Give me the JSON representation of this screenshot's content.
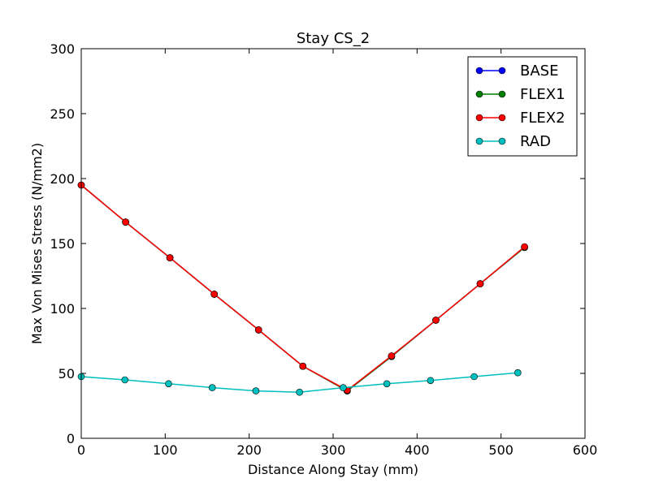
{
  "chart_data": {
    "type": "line",
    "title": "Stay CS_2",
    "xlabel": "Distance Along Stay (mm)",
    "ylabel": "Max Von Mises Stress (N/mm2)",
    "xlim": [
      0,
      600
    ],
    "ylim": [
      0,
      300
    ],
    "xticks": [
      0,
      100,
      200,
      300,
      400,
      500,
      600
    ],
    "yticks": [
      0,
      50,
      100,
      150,
      200,
      250,
      300
    ],
    "grid": false,
    "legend_position": "top-right",
    "series": [
      {
        "name": "BASE",
        "color": "#0000ff",
        "x": [
          0,
          52.8,
          105.6,
          158.4,
          211.2,
          264,
          316.8,
          369.6,
          422.4,
          475.2,
          528
        ],
        "y": [
          195,
          166.5,
          139,
          111,
          83.5,
          55.5,
          36.5,
          63,
          91,
          119,
          147
        ]
      },
      {
        "name": "FLEX1",
        "color": "#008000",
        "x": [
          0,
          52.8,
          105.6,
          158.4,
          211.2,
          264,
          316.8,
          369.6,
          422.4,
          475.2,
          528
        ],
        "y": [
          195,
          166.5,
          139,
          111,
          83.5,
          55.5,
          36.5,
          63,
          91,
          119,
          147
        ]
      },
      {
        "name": "FLEX2",
        "color": "#ff0000",
        "x": [
          0,
          52.8,
          105.6,
          158.4,
          211.2,
          264,
          316.8,
          369.6,
          422.4,
          475.2,
          528
        ],
        "y": [
          195,
          166.5,
          139,
          111,
          83.5,
          55.5,
          37,
          63.5,
          91,
          119,
          147.5
        ]
      },
      {
        "name": "RAD",
        "color": "#00bfbf",
        "x": [
          0,
          52,
          104,
          156,
          208,
          260,
          312,
          364,
          416,
          468,
          520
        ],
        "y": [
          47.5,
          45,
          42,
          39,
          36.5,
          35.5,
          39,
          42,
          44.5,
          47.5,
          50.5
        ]
      }
    ]
  }
}
